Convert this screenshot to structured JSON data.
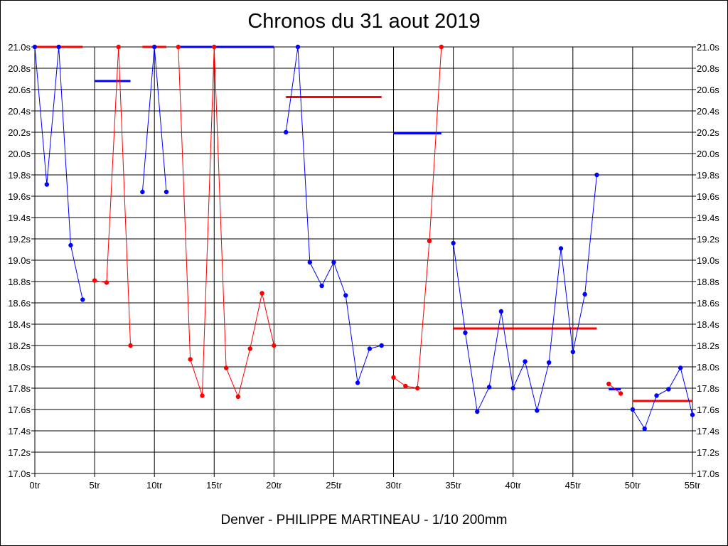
{
  "chart_data": {
    "type": "line",
    "title": "Chronos du 31 aout 2019",
    "subtitle": "Denver - PHILIPPE MARTINEAU - 1/10 200mm",
    "xlabel": "",
    "ylabel": "",
    "xlim": [
      0,
      55
    ],
    "ylim": [
      17.0,
      21.0
    ],
    "grid": true,
    "x_ticks": [
      0,
      5,
      10,
      15,
      20,
      25,
      30,
      35,
      40,
      45,
      50,
      55
    ],
    "x_tick_labels": [
      "0tr",
      "5tr",
      "10tr",
      "15tr",
      "20tr",
      "25tr",
      "30tr",
      "35tr",
      "40tr",
      "45tr",
      "50tr",
      "55tr"
    ],
    "y_ticks": [
      17.0,
      17.2,
      17.4,
      17.6,
      17.8,
      18.0,
      18.2,
      18.4,
      18.6,
      18.8,
      19.0,
      19.2,
      19.4,
      19.6,
      19.8,
      20.0,
      20.2,
      20.4,
      20.6,
      20.8,
      21.0
    ],
    "y_tick_labels": [
      "17.0s",
      "17.2s",
      "17.4s",
      "17.6s",
      "17.8s",
      "18.0s",
      "18.2s",
      "18.4s",
      "18.6s",
      "18.8s",
      "19.0s",
      "19.2s",
      "19.4s",
      "19.6s",
      "19.8s",
      "20.0s",
      "20.2s",
      "20.4s",
      "20.6s",
      "20.8s",
      "21.0s"
    ],
    "series": [
      {
        "color": "#0000ff",
        "x": [
          0,
          1,
          2,
          3,
          4
        ],
        "y": [
          21.0,
          19.71,
          21.0,
          19.14,
          18.63
        ]
      },
      {
        "color": "#ff0000",
        "x": [
          5,
          6,
          7,
          8
        ],
        "y": [
          18.81,
          18.79,
          21.0,
          18.2
        ]
      },
      {
        "color": "#0000ff",
        "x": [
          9,
          10,
          11
        ],
        "y": [
          19.64,
          21.0,
          19.64
        ]
      },
      {
        "color": "#ff0000",
        "x": [
          12,
          13,
          14,
          15,
          16,
          17,
          18,
          19,
          20
        ],
        "y": [
          21.0,
          18.07,
          17.73,
          21.0,
          17.99,
          17.72,
          18.17,
          18.69,
          18.2
        ]
      },
      {
        "color": "#0000ff",
        "x": [
          21,
          22,
          23,
          24,
          25,
          26,
          27,
          28,
          29
        ],
        "y": [
          20.2,
          21.0,
          18.98,
          18.76,
          18.98,
          18.67,
          17.85,
          18.17,
          18.2
        ]
      },
      {
        "color": "#ff0000",
        "x": [
          30,
          31,
          32,
          33,
          34
        ],
        "y": [
          17.9,
          17.82,
          17.8,
          19.18,
          21.0
        ]
      },
      {
        "color": "#0000ff",
        "x": [
          35,
          36,
          37,
          38,
          39,
          40,
          41,
          42,
          43,
          44,
          45,
          46,
          47
        ],
        "y": [
          19.16,
          18.32,
          17.58,
          17.81,
          18.52,
          17.8,
          18.05,
          17.59,
          18.04,
          19.11,
          18.14,
          18.68,
          19.8
        ]
      },
      {
        "color": "#ff0000",
        "x": [
          48,
          49
        ],
        "y": [
          17.84,
          17.75
        ]
      },
      {
        "color": "#0000ff",
        "x": [
          50,
          51,
          52,
          53,
          54,
          55
        ],
        "y": [
          17.6,
          17.42,
          17.73,
          17.79,
          17.99,
          17.55
        ]
      }
    ],
    "averages": [
      {
        "color": "#ff0000",
        "x": [
          0,
          4
        ],
        "y": 21.0
      },
      {
        "color": "#0000ff",
        "x": [
          5,
          8
        ],
        "y": 20.68
      },
      {
        "color": "#ff0000",
        "x": [
          9,
          11
        ],
        "y": 21.0
      },
      {
        "color": "#0000ff",
        "x": [
          12,
          20
        ],
        "y": 21.0
      },
      {
        "color": "#ff0000",
        "x": [
          21,
          29
        ],
        "y": 20.53
      },
      {
        "color": "#0000ff",
        "x": [
          30,
          34
        ],
        "y": 20.19
      },
      {
        "color": "#ff0000",
        "x": [
          35,
          47
        ],
        "y": 18.36
      },
      {
        "color": "#0000ff",
        "x": [
          48,
          49
        ],
        "y": 17.79
      },
      {
        "color": "#ff0000",
        "x": [
          50,
          55
        ],
        "y": 17.68
      }
    ]
  }
}
